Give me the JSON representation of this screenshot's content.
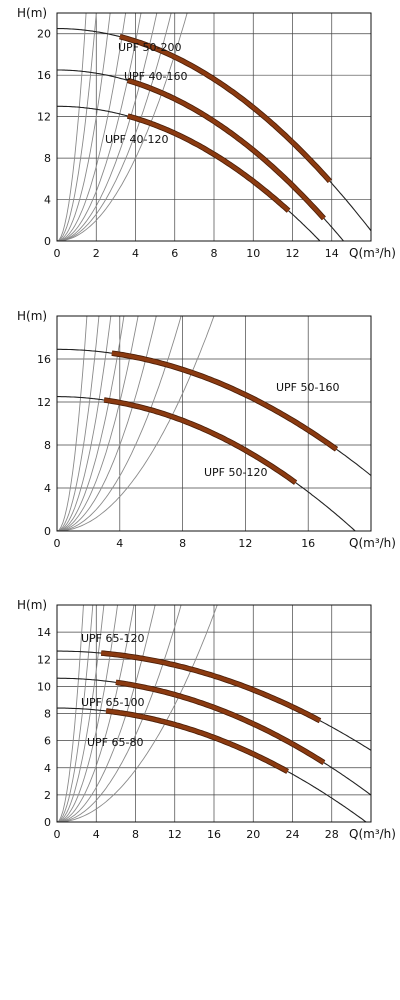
{
  "colors": {
    "frame": "#111111",
    "grid": "#444444",
    "system_curve": "#8a8a8a",
    "pump_curve": "#222222",
    "operating_band": "#8b3a10",
    "operating_band_edge": "#4a1e08"
  },
  "chart_data": [
    {
      "type": "line",
      "xlabel": "Q(m³/h)",
      "ylabel": "H(m)",
      "xlim": [
        0,
        16
      ],
      "ylim": [
        0,
        22
      ],
      "xticks": [
        0,
        2,
        4,
        6,
        8,
        10,
        12,
        14
      ],
      "yticks": [
        0,
        4,
        8,
        12,
        16,
        20
      ],
      "grid": true,
      "system_curves_k": [
        0.5,
        0.65,
        0.85,
        1.2,
        1.8,
        3.0,
        5.5,
        10
      ],
      "series": [
        {
          "name": "UPF 50-200",
          "pump_curve": {
            "h0": 20.5,
            "qmax": 16.4
          },
          "operating_range": [
            3.2,
            13.9
          ]
        },
        {
          "name": "UPF 40-160",
          "pump_curve": {
            "h0": 16.5,
            "qmax": 14.6
          },
          "operating_range": [
            3.6,
            13.6
          ]
        },
        {
          "name": "UPF 40-120",
          "pump_curve": {
            "h0": 13.0,
            "qmax": 13.4
          },
          "operating_range": [
            3.6,
            11.8
          ]
        }
      ]
    },
    {
      "type": "line",
      "xlabel": "Q(m³/h)",
      "ylabel": "H(m)",
      "xlim": [
        0,
        20
      ],
      "ylim": [
        0,
        20
      ],
      "xticks": [
        0,
        4,
        8,
        12,
        16
      ],
      "yticks": [
        0,
        4,
        8,
        12,
        16
      ],
      "grid": true,
      "system_curves_k": [
        0.2,
        0.32,
        0.5,
        0.75,
        1.1,
        1.7,
        2.8,
        5.5
      ],
      "series": [
        {
          "name": "UPF 50-160",
          "pump_curve": {
            "h0": 16.9,
            "qmax": 24.0
          },
          "operating_range": [
            3.5,
            17.8
          ]
        },
        {
          "name": "UPF 50-120",
          "pump_curve": {
            "h0": 12.5,
            "qmax": 19.0
          },
          "operating_range": [
            3.0,
            15.2
          ]
        }
      ]
    },
    {
      "type": "line",
      "xlabel": "Q(m³/h)",
      "ylabel": "H(m)",
      "xlim": [
        0,
        32
      ],
      "ylim": [
        0,
        16
      ],
      "xticks": [
        0,
        4,
        8,
        12,
        16,
        20,
        24,
        28
      ],
      "yticks": [
        0,
        2,
        4,
        6,
        8,
        10,
        12,
        14
      ],
      "grid": true,
      "system_curves_k": [
        0.06,
        0.1,
        0.16,
        0.26,
        0.42,
        0.7,
        1.2,
        2.2
      ],
      "series": [
        {
          "name": "UPF 65-120",
          "pump_curve": {
            "h0": 12.6,
            "qmax": 42.0
          },
          "operating_range": [
            4.5,
            26.8
          ]
        },
        {
          "name": "UPF 65-100",
          "pump_curve": {
            "h0": 10.6,
            "qmax": 35.5
          },
          "operating_range": [
            6.0,
            27.2
          ]
        },
        {
          "name": "UPF 65-80",
          "pump_curve": {
            "h0": 8.4,
            "qmax": 31.5
          },
          "operating_range": [
            5.0,
            23.5
          ]
        }
      ]
    }
  ]
}
